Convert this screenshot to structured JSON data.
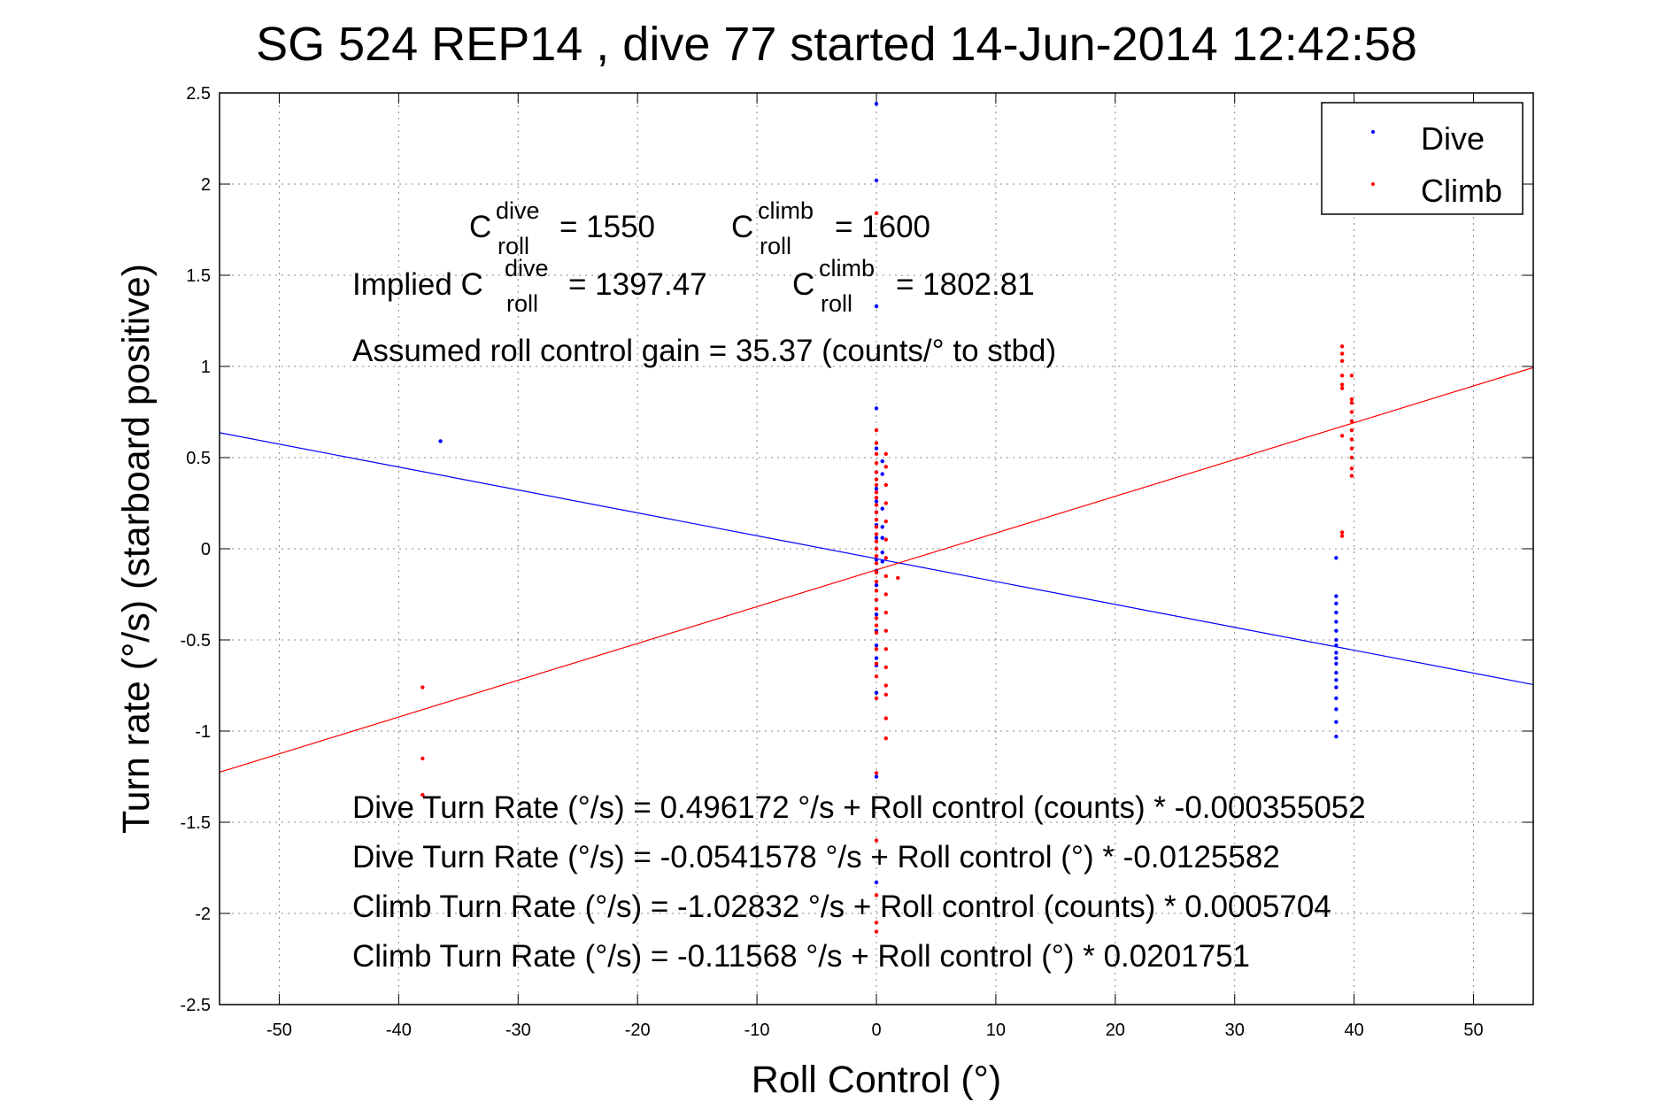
{
  "chart_data": {
    "type": "scatter",
    "title": "SG 524   REP14  , dive 77 started 14-Jun-2014 12:42:58",
    "xlabel": "Roll Control (°)",
    "ylabel": "Turn rate (°/s)  (starboard positive)",
    "xlim": [
      -55,
      55
    ],
    "ylim": [
      -2.5,
      2.5
    ],
    "xticks": [
      -50,
      -40,
      -30,
      -20,
      -10,
      0,
      10,
      20,
      30,
      40,
      50
    ],
    "yticks": [
      -2.5,
      -2,
      -1.5,
      -1,
      -0.5,
      0,
      0.5,
      1,
      1.5,
      2,
      2.5
    ],
    "xtick_labels": [
      "-50",
      "-40",
      "-30",
      "-20",
      "-10",
      "0",
      "10",
      "20",
      "30",
      "40",
      "50"
    ],
    "ytick_labels": [
      "-2.5",
      "-2",
      "-1.5",
      "-1",
      "-0.5",
      "0",
      "0.5",
      "1",
      "1.5",
      "2",
      "2.5"
    ],
    "grid": true,
    "legend_position": "top-right",
    "series": [
      {
        "name": "Dive",
        "color": "#0000ff",
        "fit": {
          "intercept": -0.0541578,
          "slope": -0.0125582
        },
        "points": [
          [
            -36.5,
            0.59
          ],
          [
            0,
            2.44
          ],
          [
            0,
            2.02
          ],
          [
            0,
            1.33
          ],
          [
            0,
            0.77
          ],
          [
            0,
            0.55
          ],
          [
            0,
            0.42
          ],
          [
            0,
            0.33
          ],
          [
            0,
            0.26
          ],
          [
            0,
            0.2
          ],
          [
            0,
            0.13
          ],
          [
            0,
            0.06
          ],
          [
            0,
            0.0
          ],
          [
            0,
            -0.06
          ],
          [
            0,
            -0.12
          ],
          [
            0,
            -0.2
          ],
          [
            0,
            -0.28
          ],
          [
            0,
            -0.36
          ],
          [
            0,
            -0.45
          ],
          [
            0,
            -0.53
          ],
          [
            0,
            -0.6
          ],
          [
            0,
            -0.64
          ],
          [
            0,
            -0.79
          ],
          [
            0,
            -1.25
          ],
          [
            0,
            -1.83
          ],
          [
            0.5,
            0.48
          ],
          [
            0.5,
            0.41
          ],
          [
            0.5,
            0.22
          ],
          [
            0.5,
            0.12
          ],
          [
            0.5,
            0.06
          ],
          [
            0.5,
            -0.02
          ],
          [
            0.5,
            -0.07
          ],
          [
            38.5,
            -0.05
          ],
          [
            38.5,
            -0.26
          ],
          [
            38.5,
            -0.3
          ],
          [
            38.5,
            -0.35
          ],
          [
            38.5,
            -0.4
          ],
          [
            38.5,
            -0.45
          ],
          [
            38.5,
            -0.5
          ],
          [
            38.5,
            -0.53
          ],
          [
            38.5,
            -0.57
          ],
          [
            38.5,
            -0.6
          ],
          [
            38.5,
            -0.63
          ],
          [
            38.5,
            -0.68
          ],
          [
            38.5,
            -0.72
          ],
          [
            38.5,
            -0.76
          ],
          [
            38.5,
            -0.82
          ],
          [
            38.5,
            -0.88
          ],
          [
            38.5,
            -0.95
          ],
          [
            38.5,
            -1.03
          ]
        ]
      },
      {
        "name": "Climb",
        "color": "#ff0000",
        "fit": {
          "intercept": -0.11568,
          "slope": 0.0201751
        },
        "points": [
          [
            -38,
            -0.76
          ],
          [
            -38,
            -1.15
          ],
          [
            -38,
            -1.35
          ],
          [
            0,
            1.84
          ],
          [
            0,
            0.65
          ],
          [
            0,
            0.58
          ],
          [
            0,
            0.52
          ],
          [
            0,
            0.47
          ],
          [
            0,
            0.42
          ],
          [
            0,
            0.38
          ],
          [
            0,
            0.35
          ],
          [
            0,
            0.31
          ],
          [
            0,
            0.28
          ],
          [
            0,
            0.24
          ],
          [
            0,
            0.2
          ],
          [
            0,
            0.16
          ],
          [
            0,
            0.12
          ],
          [
            0,
            0.08
          ],
          [
            0,
            0.04
          ],
          [
            0,
            0.0
          ],
          [
            0,
            -0.04
          ],
          [
            0,
            -0.08
          ],
          [
            0,
            -0.13
          ],
          [
            0,
            -0.18
          ],
          [
            0,
            -0.23
          ],
          [
            0,
            -0.28
          ],
          [
            0,
            -0.33
          ],
          [
            0,
            -0.38
          ],
          [
            0,
            -0.42
          ],
          [
            0,
            -0.46
          ],
          [
            0,
            -0.55
          ],
          [
            0,
            -0.63
          ],
          [
            0,
            -0.7
          ],
          [
            0,
            -0.82
          ],
          [
            0,
            -1.23
          ],
          [
            0,
            -1.6
          ],
          [
            0,
            -1.9
          ],
          [
            0,
            -2.05
          ],
          [
            0,
            -2.1
          ],
          [
            0.8,
            0.52
          ],
          [
            0.8,
            0.45
          ],
          [
            0.8,
            0.35
          ],
          [
            0.8,
            0.25
          ],
          [
            0.8,
            0.15
          ],
          [
            0.8,
            0.05
          ],
          [
            0.8,
            -0.05
          ],
          [
            0.8,
            -0.15
          ],
          [
            0.8,
            -0.25
          ],
          [
            0.8,
            -0.35
          ],
          [
            0.8,
            -0.45
          ],
          [
            0.8,
            -0.55
          ],
          [
            0.8,
            -0.65
          ],
          [
            0.8,
            -0.75
          ],
          [
            0.8,
            -0.8
          ],
          [
            0.8,
            -0.93
          ],
          [
            0.8,
            -1.04
          ],
          [
            1.8,
            -0.16
          ],
          [
            39,
            1.11
          ],
          [
            39,
            1.07
          ],
          [
            39,
            1.03
          ],
          [
            39,
            0.95
          ],
          [
            39,
            0.9
          ],
          [
            39,
            0.88
          ],
          [
            39,
            0.62
          ],
          [
            39,
            0.09
          ],
          [
            39,
            0.07
          ],
          [
            39.8,
            0.95
          ],
          [
            39.8,
            0.82
          ],
          [
            39.8,
            0.8
          ],
          [
            39.8,
            0.75
          ],
          [
            39.8,
            0.7
          ],
          [
            39.8,
            0.65
          ],
          [
            39.8,
            0.6
          ],
          [
            39.8,
            0.55
          ],
          [
            39.8,
            0.5
          ],
          [
            39.8,
            0.44
          ],
          [
            39.8,
            0.4
          ]
        ]
      }
    ]
  },
  "annotations": {
    "c_dive_base": "C",
    "c_dive_sup": "dive",
    "c_dive_sub": "roll",
    "c_dive_value": "= 1550",
    "c_climb_base": "C",
    "c_climb_sup": "climb",
    "c_climb_sub": "roll",
    "c_climb_value": "= 1600",
    "implied_prefix": "Implied C",
    "implied_dive_sup": "dive",
    "implied_dive_sub": "roll",
    "implied_dive_value": "= 1397.47",
    "implied_climb_base": "C",
    "implied_climb_sup": "climb",
    "implied_climb_sub": "roll",
    "implied_climb_value": "= 1802.81",
    "gain": "Assumed roll control gain = 35.37 (counts/° to stbd)",
    "eq1": "Dive Turn Rate (°/s) = 0.496172 °/s + Roll control (counts) * -0.000355052",
    "eq2": "Dive Turn Rate (°/s) = -0.0541578 °/s + Roll control (°) * -0.0125582",
    "eq3": "Climb Turn Rate (°/s) = -1.02832 °/s + Roll control (counts) * 0.0005704",
    "eq4": "Climb Turn Rate (°/s) = -0.11568 °/s + Roll control (°) * 0.0201751"
  },
  "legend": {
    "dive_label": "Dive",
    "climb_label": "Climb"
  }
}
